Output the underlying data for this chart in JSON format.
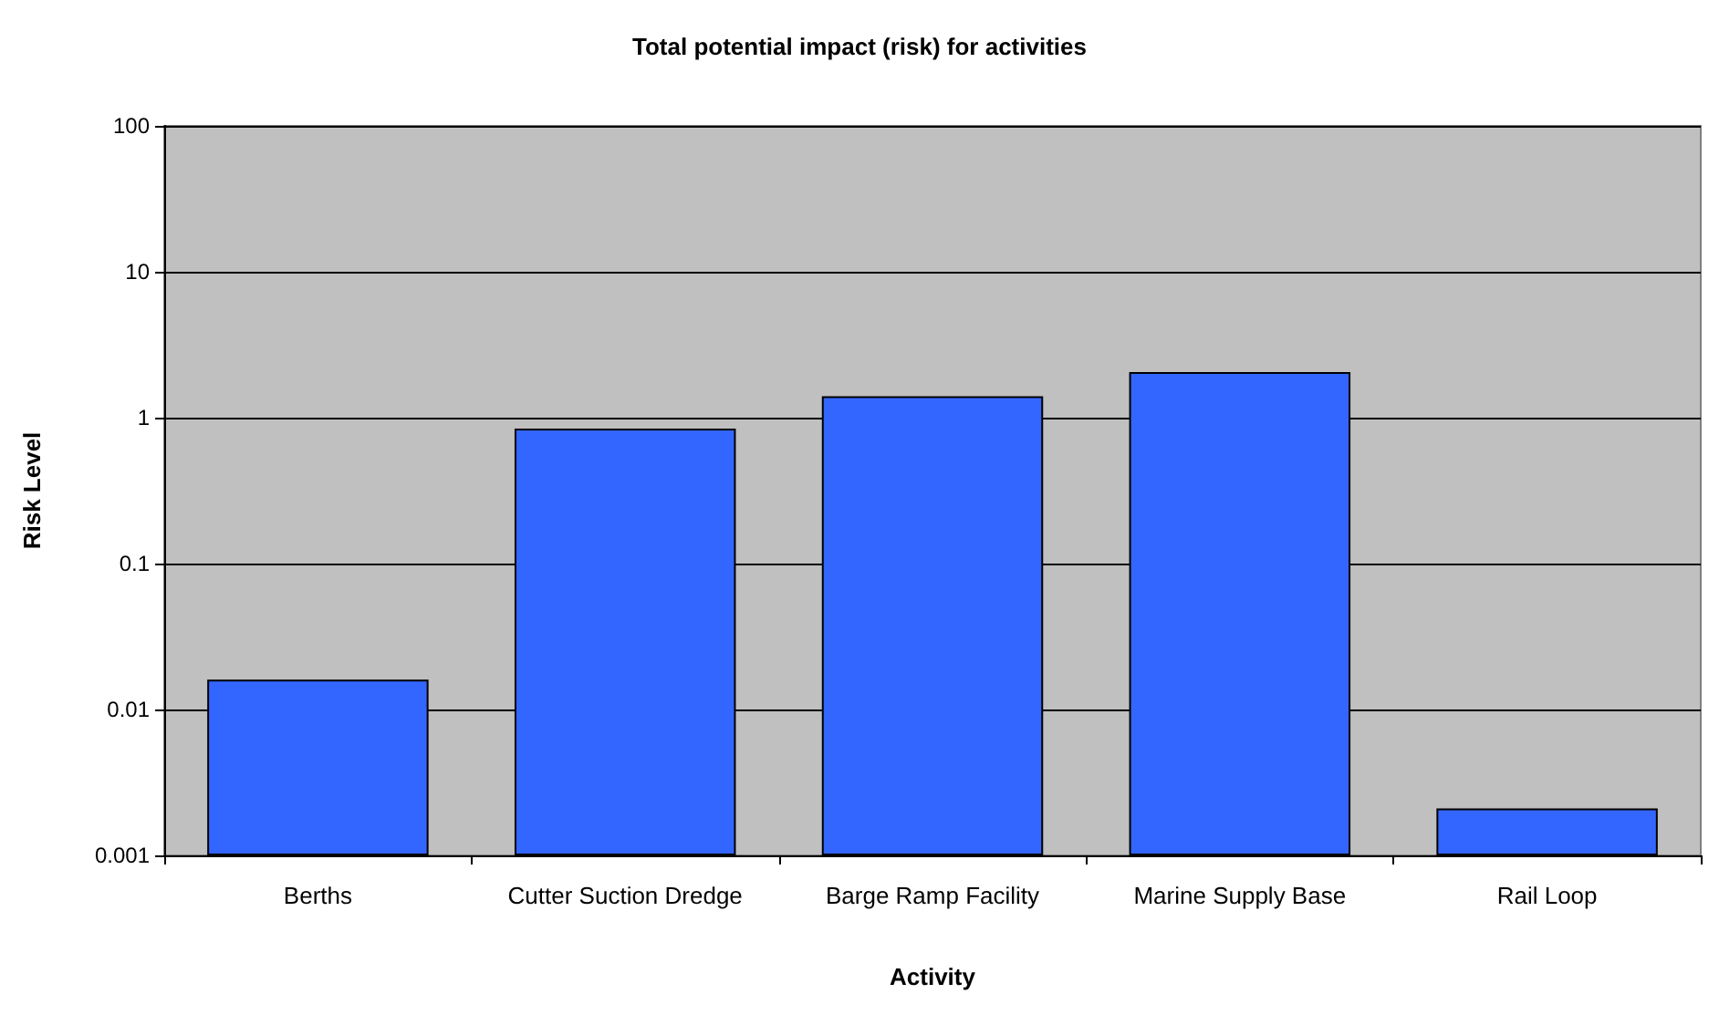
{
  "chart_data": {
    "type": "bar",
    "title": "Total potential impact (risk) for activities",
    "xlabel": "Activity",
    "ylabel": "Risk Level",
    "categories": [
      "Berths",
      "Cutter Suction Dredge",
      "Barge Ramp Facility",
      "Marine Supply Base",
      "Rail Loop"
    ],
    "values": [
      0.016,
      0.84,
      1.4,
      2.05,
      0.0021
    ],
    "color": "#3366ff",
    "log": true,
    "ylim": [
      0.001,
      100
    ],
    "yticks": [
      0.001,
      0.01,
      0.1,
      1,
      10,
      100
    ],
    "grid": "y"
  }
}
